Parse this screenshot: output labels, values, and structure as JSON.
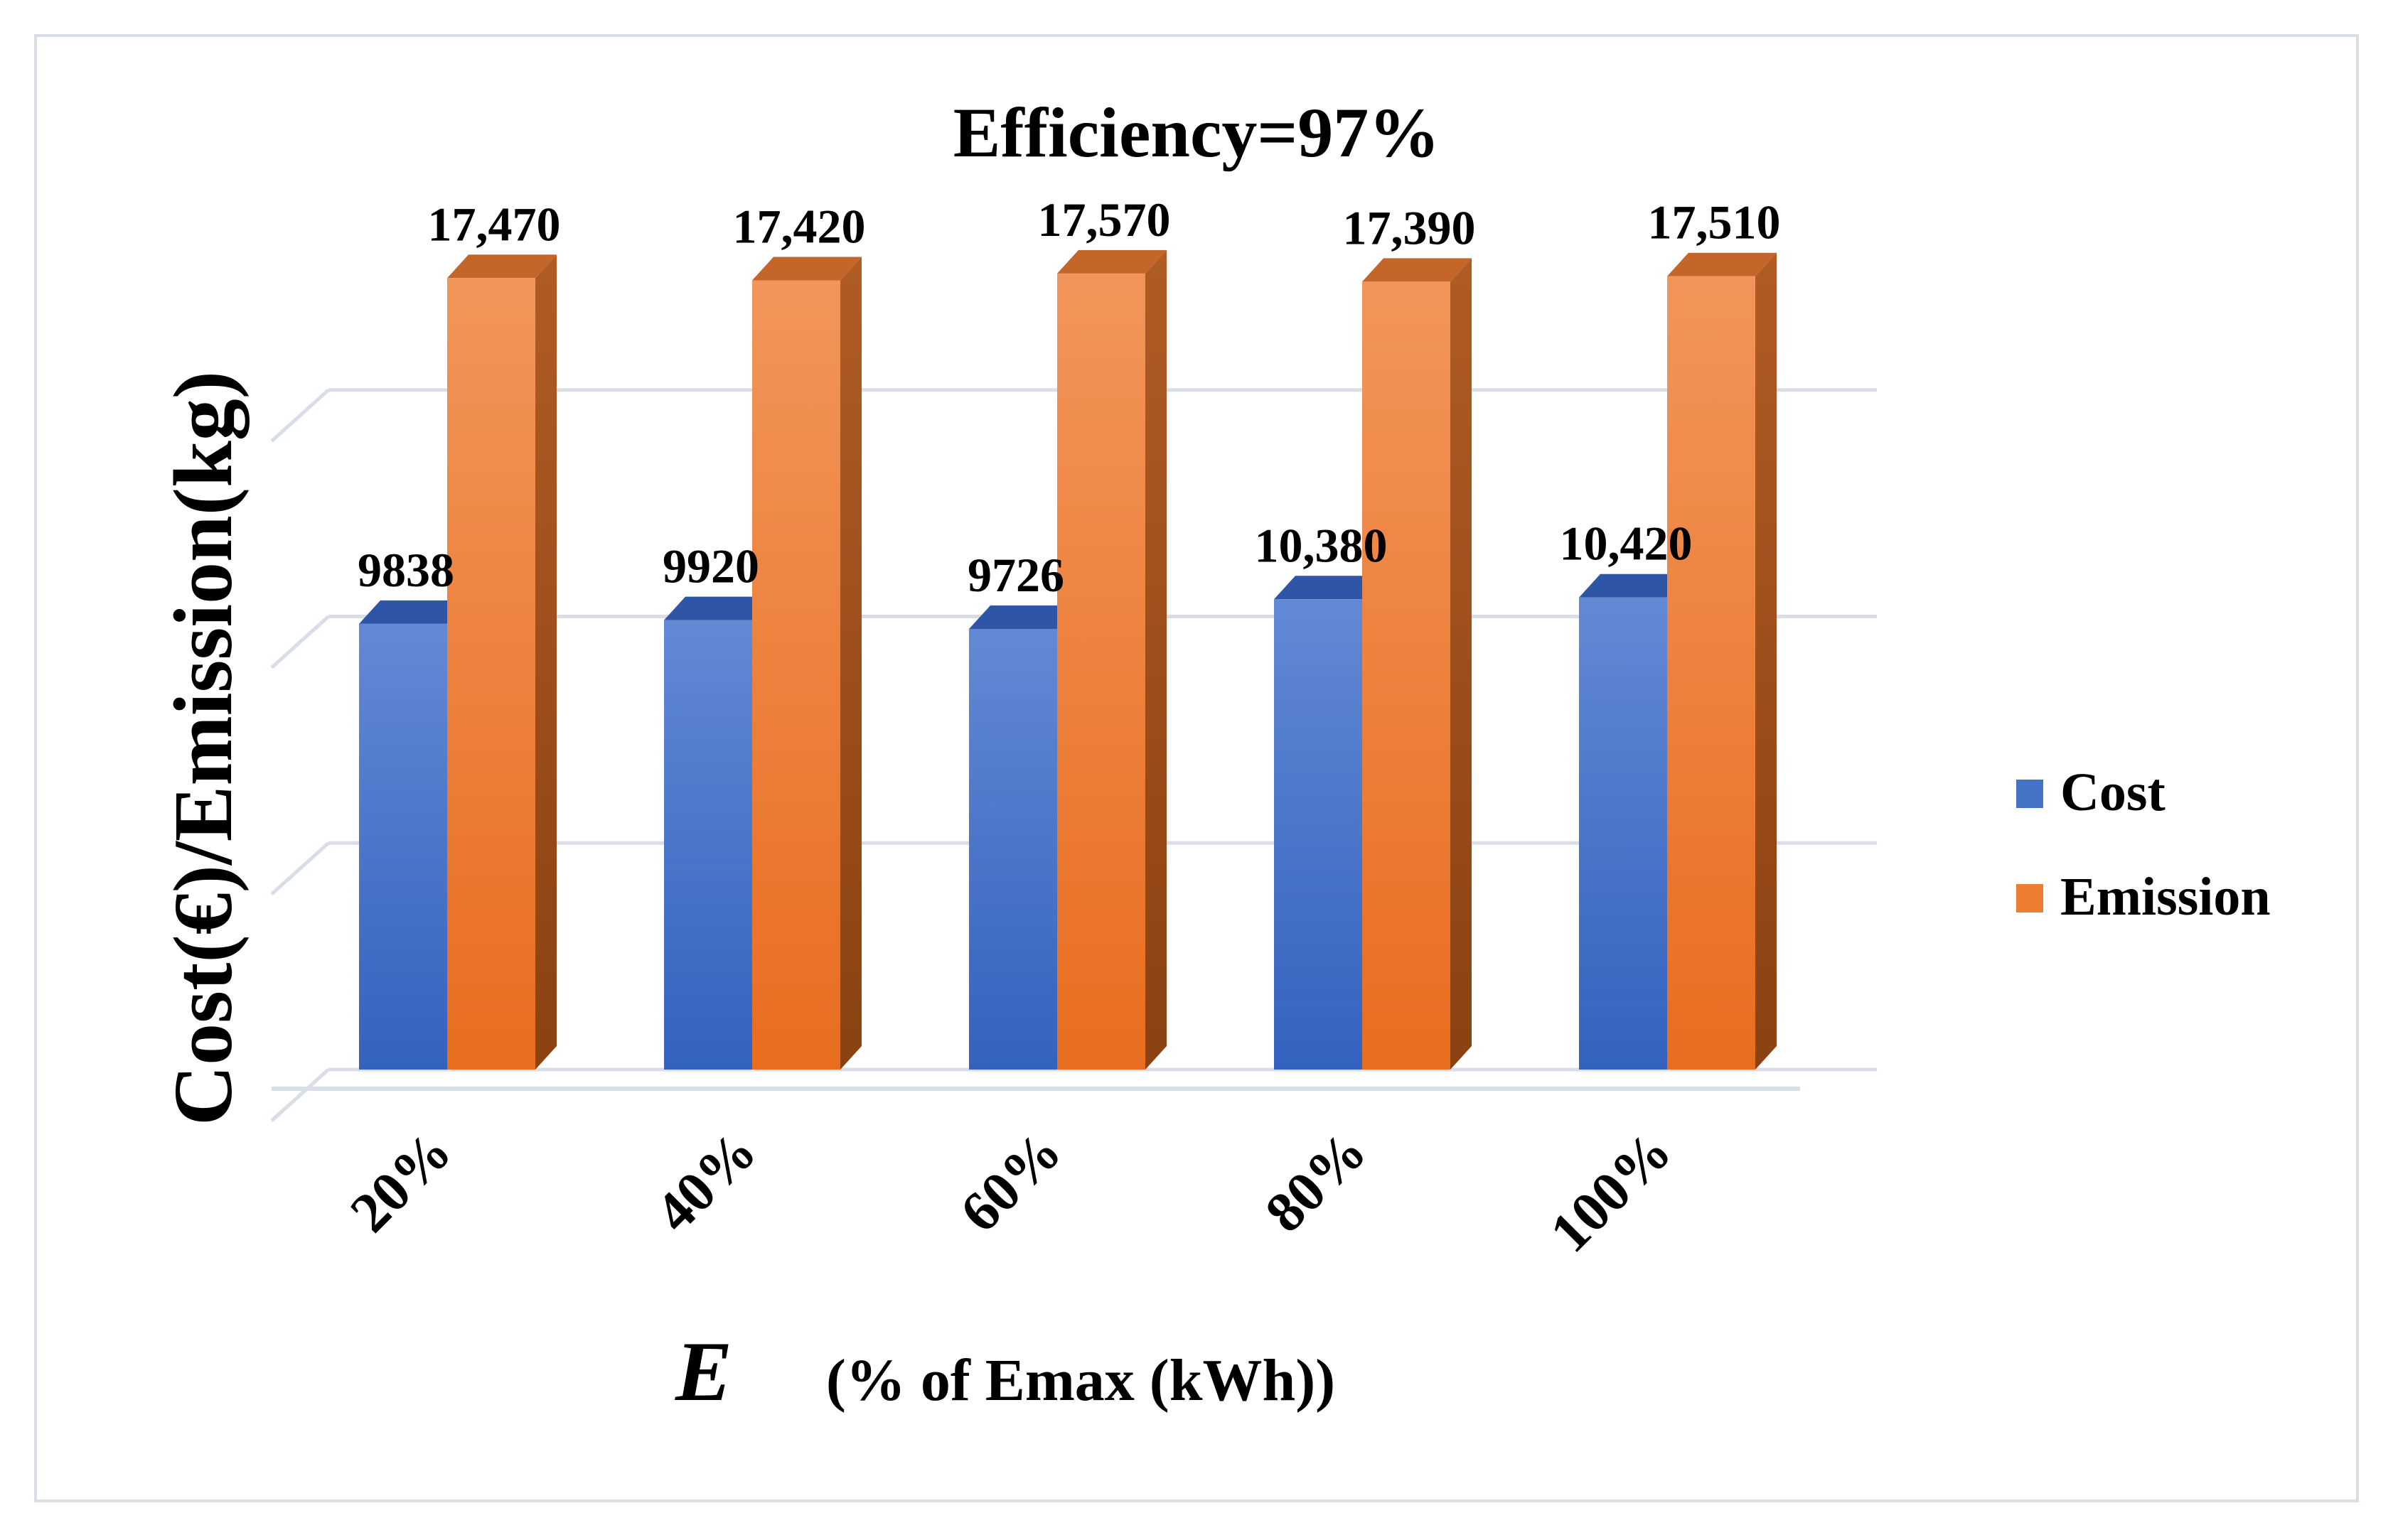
{
  "chart_data": {
    "type": "bar",
    "title": "Efficiency=97%",
    "categories": [
      "20%",
      "40%",
      "60%",
      "80%",
      "100%"
    ],
    "series": [
      {
        "name": "Cost",
        "values": [
          9838,
          9920,
          9726,
          10380,
          10420
        ],
        "labels": [
          "9838",
          "9920",
          "9726",
          "10,380",
          "10,420"
        ],
        "color": "#4472C4"
      },
      {
        "name": "Emission",
        "values": [
          17470,
          17420,
          17570,
          17390,
          17510
        ],
        "labels": [
          "17,470",
          "17,420",
          "17,570",
          "17,390",
          "17,510"
        ],
        "color": "#ED7D31"
      }
    ],
    "xlabel_symbol": "E",
    "xlabel_text": "(% of Emax (kWh))",
    "ylabel": "Cost(€)/Emission(kg)",
    "ylim": [
      0,
      20000
    ],
    "grid": true,
    "legend_position": "right"
  }
}
